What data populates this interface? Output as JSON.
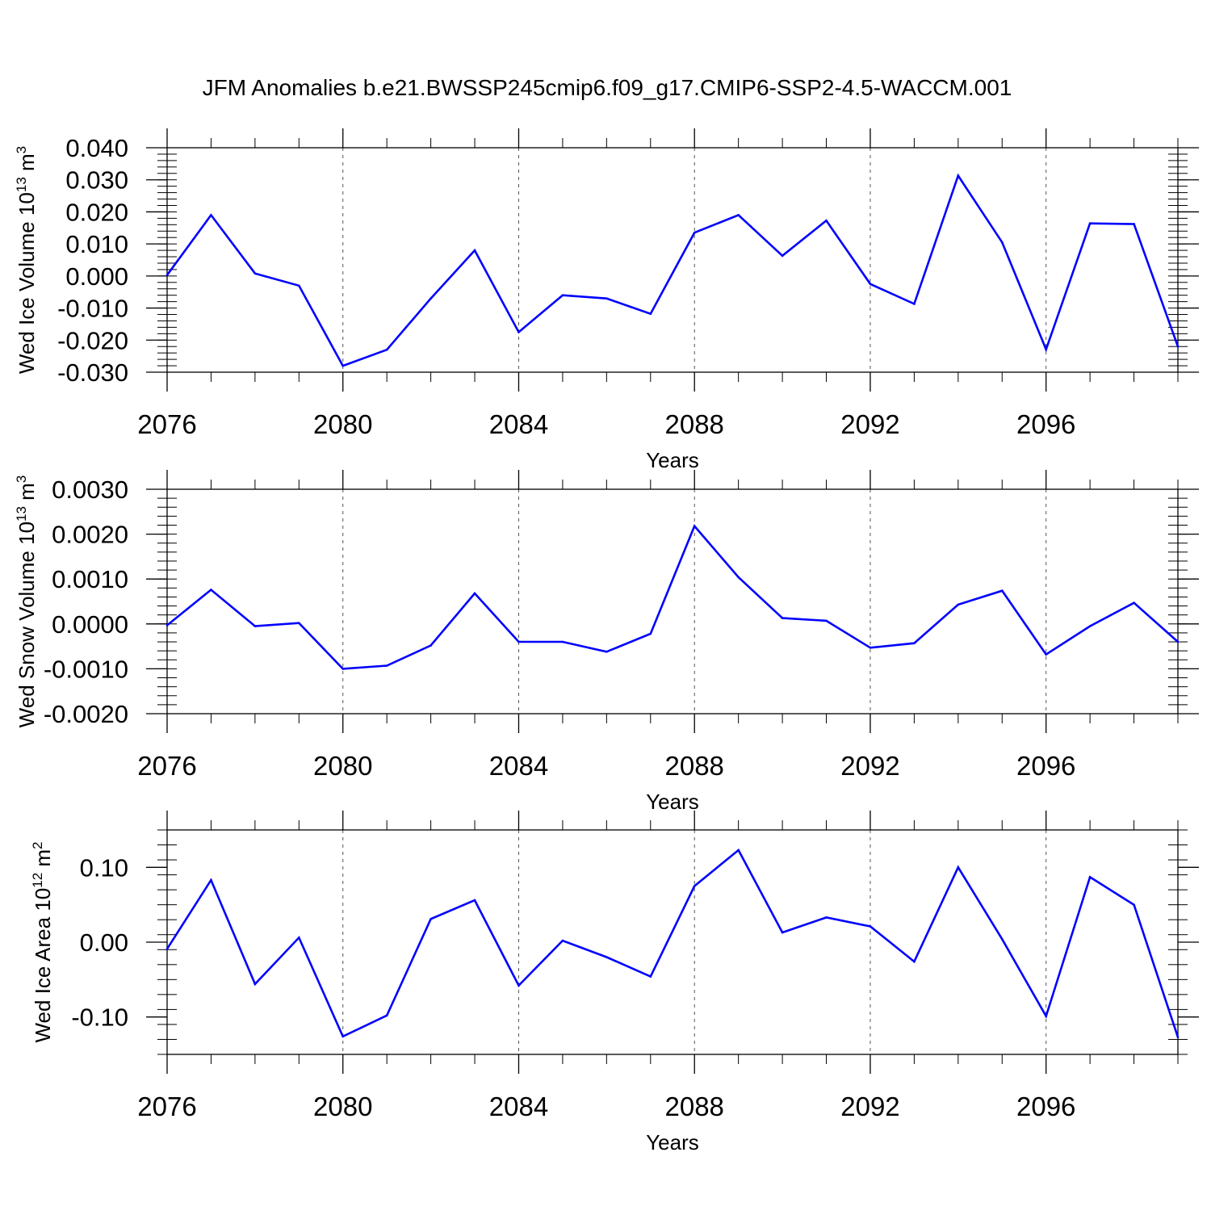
{
  "figure_title": "JFM Anomalies b.e21.BWSSP245cmip6.f09_g17.CMIP6-SSP2-4.5-WACCM.001",
  "colors": {
    "line": "#0000ff",
    "axis": "#000000",
    "grid": "#555555",
    "background": "#ffffff"
  },
  "chart_data": [
    {
      "type": "line",
      "ylabel": "Wed Ice Volume 10",
      "ylabel_exp": "13",
      "ylabel_unit": " m",
      "ylabel_unit_exp": "3",
      "xlabel": "Years",
      "xlim": [
        2076,
        2099
      ],
      "ylim": [
        -0.03,
        0.04
      ],
      "yticks": [
        -0.03,
        -0.02,
        -0.01,
        0.0,
        0.01,
        0.02,
        0.03,
        0.04
      ],
      "ytick_labels": [
        "-0.030",
        "-0.020",
        "-0.010",
        "0.000",
        "0.010",
        "0.020",
        "0.030",
        "0.040"
      ],
      "yminor_step": 0.002,
      "xticks": [
        2076,
        2080,
        2084,
        2088,
        2092,
        2096
      ],
      "xtick_labels": [
        "2076",
        "2080",
        "2084",
        "2088",
        "2092",
        "2096"
      ],
      "x_gridlines": [
        2080,
        2084,
        2088,
        2092,
        2096
      ],
      "x": [
        2076,
        2077,
        2078,
        2079,
        2080,
        2081,
        2082,
        2083,
        2084,
        2085,
        2086,
        2087,
        2088,
        2089,
        2090,
        2091,
        2092,
        2093,
        2094,
        2095,
        2096,
        2097,
        2098,
        2099
      ],
      "values": [
        0.0003,
        0.019,
        0.0008,
        -0.003,
        -0.028,
        -0.023,
        -0.007,
        0.008,
        -0.0175,
        -0.006,
        -0.007,
        -0.0118,
        0.0135,
        0.019,
        0.0063,
        0.0173,
        -0.0025,
        -0.0087,
        0.0313,
        0.0105,
        -0.0229,
        0.0164,
        0.0162,
        -0.022
      ]
    },
    {
      "type": "line",
      "ylabel": "Wed Snow Volume 10",
      "ylabel_exp": "13",
      "ylabel_unit": " m",
      "ylabel_unit_exp": "3",
      "xlabel": "Years",
      "xlim": [
        2076,
        2099
      ],
      "ylim": [
        -0.002,
        0.003
      ],
      "yticks": [
        -0.002,
        -0.001,
        0.0,
        0.001,
        0.002,
        0.003
      ],
      "ytick_labels": [
        "-0.0020",
        "-0.0010",
        "0.0000",
        "0.0010",
        "0.0020",
        "0.0030"
      ],
      "yminor_step": 0.0002,
      "xticks": [
        2076,
        2080,
        2084,
        2088,
        2092,
        2096
      ],
      "xtick_labels": [
        "2076",
        "2080",
        "2084",
        "2088",
        "2092",
        "2096"
      ],
      "x_gridlines": [
        2080,
        2084,
        2088,
        2092,
        2096
      ],
      "x": [
        2076,
        2077,
        2078,
        2079,
        2080,
        2081,
        2082,
        2083,
        2084,
        2085,
        2086,
        2087,
        2088,
        2089,
        2090,
        2091,
        2092,
        2093,
        2094,
        2095,
        2096,
        2097,
        2098,
        2099
      ],
      "values": [
        -3e-05,
        0.00076,
        -5e-05,
        2e-05,
        -0.001,
        -0.00093,
        -0.00048,
        0.00068,
        -0.0004,
        -0.0004,
        -0.00062,
        -0.00022,
        0.00218,
        0.00104,
        0.00013,
        7e-05,
        -0.00053,
        -0.00043,
        0.00043,
        0.00074,
        -0.00068,
        -5e-05,
        0.00047,
        -0.0004
      ]
    },
    {
      "type": "line",
      "ylabel": "Wed Ice Area 10",
      "ylabel_exp": "12",
      "ylabel_unit": " m",
      "ylabel_unit_exp": "2",
      "xlabel": "Years",
      "xlim": [
        2076,
        2099
      ],
      "ylim": [
        -0.15,
        0.15
      ],
      "yticks": [
        -0.1,
        0.0,
        0.1
      ],
      "ytick_labels": [
        "-0.10",
        "0.00",
        "0.10"
      ],
      "yminor_step": 0.02,
      "xticks": [
        2076,
        2080,
        2084,
        2088,
        2092,
        2096
      ],
      "xtick_labels": [
        "2076",
        "2080",
        "2084",
        "2088",
        "2092",
        "2096"
      ],
      "x_gridlines": [
        2080,
        2084,
        2088,
        2092,
        2096
      ],
      "x": [
        2076,
        2077,
        2078,
        2079,
        2080,
        2081,
        2082,
        2083,
        2084,
        2085,
        2086,
        2087,
        2088,
        2089,
        2090,
        2091,
        2092,
        2093,
        2094,
        2095,
        2096,
        2097,
        2098,
        2099
      ],
      "values": [
        -0.009,
        0.083,
        -0.056,
        0.006,
        -0.126,
        -0.098,
        0.031,
        0.056,
        -0.058,
        0.002,
        -0.02,
        -0.046,
        0.075,
        0.123,
        0.013,
        0.033,
        0.021,
        -0.026,
        0.1,
        0.004,
        -0.099,
        0.087,
        0.05,
        -0.127
      ]
    }
  ]
}
